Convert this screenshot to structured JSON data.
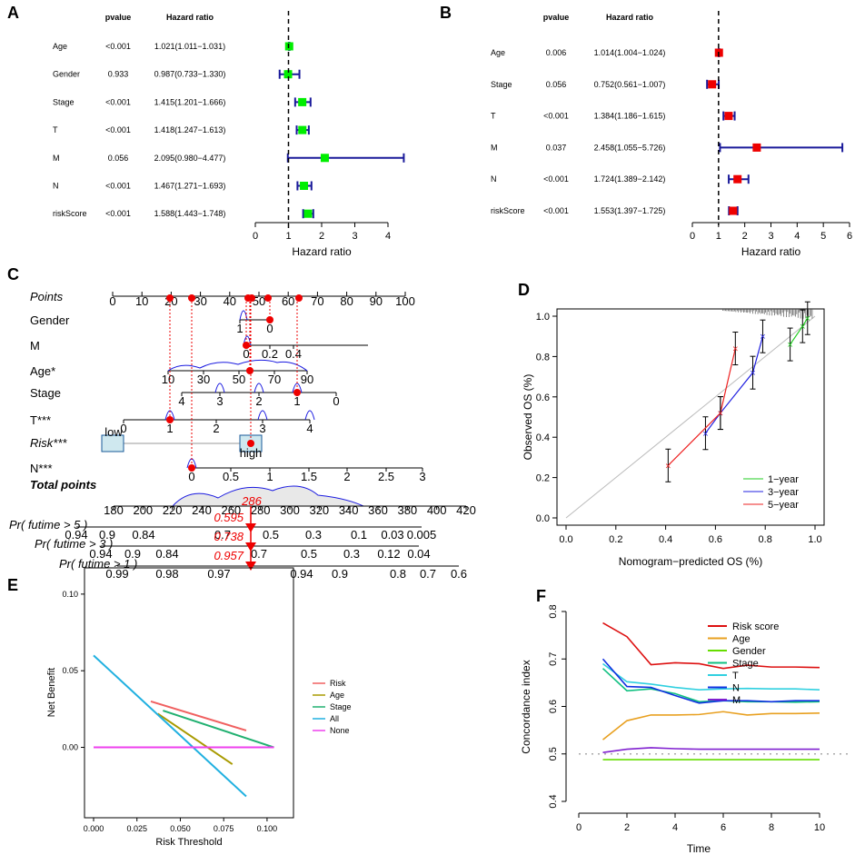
{
  "chart_data": [
    {
      "panel": "A",
      "type": "forest",
      "header_pvalue": "pvalue",
      "header_hr": "Hazard ratio",
      "xlabel": "Hazard ratio",
      "xlim": [
        0,
        4
      ],
      "ticks": [
        "0",
        "1",
        "2",
        "3",
        "4"
      ],
      "tick_values": [
        0,
        1,
        2,
        3,
        4
      ],
      "rows": [
        {
          "label": "Age",
          "p": "<0.001",
          "hr_text": "1.021(1.011−1.031)",
          "hr": 1.021,
          "lo": 1.011,
          "hi": 1.031
        },
        {
          "label": "Gender",
          "p": "0.933",
          "hr_text": "0.987(0.733−1.330)",
          "hr": 0.987,
          "lo": 0.733,
          "hi": 1.33
        },
        {
          "label": "Stage",
          "p": "<0.001",
          "hr_text": "1.415(1.201−1.666)",
          "hr": 1.415,
          "lo": 1.201,
          "hi": 1.666
        },
        {
          "label": "T",
          "p": "<0.001",
          "hr_text": "1.418(1.247−1.613)",
          "hr": 1.418,
          "lo": 1.247,
          "hi": 1.613
        },
        {
          "label": "M",
          "p": "0.056",
          "hr_text": "2.095(0.980−4.477)",
          "hr": 2.095,
          "lo": 0.98,
          "hi": 4.477
        },
        {
          "label": "N",
          "p": "<0.001",
          "hr_text": "1.467(1.271−1.693)",
          "hr": 1.467,
          "lo": 1.271,
          "hi": 1.693
        },
        {
          "label": "riskScore",
          "p": "<0.001",
          "hr_text": "1.588(1.443−1.748)",
          "hr": 1.588,
          "lo": 1.443,
          "hi": 1.748
        }
      ],
      "marker_color": "#00ee00"
    },
    {
      "panel": "B",
      "type": "forest",
      "header_pvalue": "pvalue",
      "header_hr": "Hazard ratio",
      "xlabel": "Hazard ratio",
      "xlim": [
        0,
        6
      ],
      "ticks": [
        "0",
        "1",
        "2",
        "3",
        "4",
        "5",
        "6"
      ],
      "tick_values": [
        0,
        1,
        2,
        3,
        4,
        5,
        6
      ],
      "rows": [
        {
          "label": "Age",
          "p": "0.006",
          "hr_text": "1.014(1.004−1.024)",
          "hr": 1.014,
          "lo": 1.004,
          "hi": 1.024
        },
        {
          "label": "Stage",
          "p": "0.056",
          "hr_text": "0.752(0.561−1.007)",
          "hr": 0.752,
          "lo": 0.561,
          "hi": 1.007
        },
        {
          "label": "T",
          "p": "<0.001",
          "hr_text": "1.384(1.186−1.615)",
          "hr": 1.384,
          "lo": 1.186,
          "hi": 1.615
        },
        {
          "label": "M",
          "p": "0.037",
          "hr_text": "2.458(1.055−5.726)",
          "hr": 2.458,
          "lo": 1.055,
          "hi": 5.726
        },
        {
          "label": "N",
          "p": "<0.001",
          "hr_text": "1.724(1.389−2.142)",
          "hr": 1.724,
          "lo": 1.389,
          "hi": 2.142
        },
        {
          "label": "riskScore",
          "p": "<0.001",
          "hr_text": "1.553(1.397−1.725)",
          "hr": 1.553,
          "lo": 1.397,
          "hi": 1.725
        }
      ],
      "marker_color": "#ee0000"
    },
    {
      "panel": "C",
      "type": "nomogram",
      "scales": [
        {
          "label": "Points",
          "ticks": [
            "0",
            "10",
            "20",
            "30",
            "40",
            "50",
            "60",
            "70",
            "80",
            "90",
            "100"
          ]
        },
        {
          "label": "Gender",
          "ticks": [
            "1",
            "0"
          ]
        },
        {
          "label": "M",
          "ticks": [
            "0",
            "0.2",
            "0.4"
          ]
        },
        {
          "label": "Age*",
          "ticks": [
            "10",
            "30",
            "50",
            "70",
            "90"
          ]
        },
        {
          "label": "Stage",
          "ticks": [
            "4",
            "3",
            "2",
            "1",
            "0"
          ]
        },
        {
          "label": "T***",
          "ticks": [
            "0",
            "1",
            "2",
            "3",
            "4"
          ]
        },
        {
          "label": "Risk***",
          "ticks": [
            "low",
            "high"
          ]
        },
        {
          "label": "N***",
          "ticks": [
            "0",
            "0.5",
            "1",
            "1.5",
            "2",
            "2.5",
            "3"
          ]
        },
        {
          "label": "Total points",
          "ticks": [
            "180",
            "200",
            "220",
            "240",
            "260",
            "280",
            "300",
            "320",
            "340",
            "360",
            "380",
            "400",
            "420"
          ]
        },
        {
          "label": "Pr( futime > 5 )",
          "ticks": [
            "0.94",
            "0.9",
            "0.84",
            "0.7",
            "0.5",
            "0.3",
            "0.1",
            "0.03",
            "0.005"
          ]
        },
        {
          "label": "Pr( futime > 3 )",
          "ticks": [
            "0.94",
            "0.9",
            "0.84",
            "0.7",
            "0.5",
            "0.3",
            "0.12",
            "0.04"
          ]
        },
        {
          "label": "Pr( futime > 1 )",
          "ticks": [
            "0.99",
            "0.98",
            "0.97",
            "0.94",
            "0.9",
            "0.8",
            "0.7",
            "0.6"
          ]
        }
      ],
      "total_value": "286",
      "prob_values": [
        "0.595",
        "0.738",
        "0.957"
      ],
      "highlight_color": "#ee0000"
    },
    {
      "panel": "D",
      "type": "calibration",
      "xlabel": "Nomogram−predicted OS (%)",
      "ylabel": "Observed OS (%)",
      "xlim": [
        0,
        1
      ],
      "ylim": [
        0,
        1
      ],
      "xticks": [
        "0.0",
        "0.2",
        "0.4",
        "0.6",
        "0.8",
        "1.0"
      ],
      "yticks": [
        "0.0",
        "0.2",
        "0.4",
        "0.6",
        "0.8",
        "1.0"
      ],
      "series": [
        {
          "name": "1-year",
          "color": "#22cc22",
          "x": [
            0.9,
            0.95,
            0.97
          ],
          "y": [
            0.86,
            0.95,
            0.99
          ]
        },
        {
          "name": "3-year",
          "color": "#2020e0",
          "x": [
            0.56,
            0.62,
            0.75,
            0.79
          ],
          "y": [
            0.42,
            0.52,
            0.72,
            0.9
          ]
        },
        {
          "name": "5-year",
          "color": "#ee2222",
          "x": [
            0.41,
            0.62,
            0.68
          ],
          "y": [
            0.26,
            0.52,
            0.84
          ]
        }
      ],
      "legend": [
        "1−year",
        "3−year",
        "5−year"
      ]
    },
    {
      "panel": "E",
      "type": "line",
      "xlabel": "Risk Threshold",
      "ylabel": "Net Benefit",
      "xlim": [
        0,
        0.11
      ],
      "ylim": [
        -0.04,
        0.11
      ],
      "xticks": [
        "0.000",
        "0.025",
        "0.050",
        "0.075",
        "0.100"
      ],
      "yticks": [
        "0.00",
        "0.05",
        "0.10"
      ],
      "series": [
        {
          "name": "Risk",
          "color": "#f06060",
          "x": [
            0.033,
            0.088
          ],
          "y": [
            0.03,
            0.011
          ]
        },
        {
          "name": "Age",
          "color": "#a89a00",
          "x": [
            0.037,
            0.08
          ],
          "y": [
            0.022,
            -0.011
          ]
        },
        {
          "name": "Stage",
          "color": "#20b070",
          "x": [
            0.04,
            0.104
          ],
          "y": [
            0.024,
            0.0
          ]
        },
        {
          "name": "All",
          "color": "#20b0e0",
          "x": [
            0.0,
            0.088
          ],
          "y": [
            0.06,
            -0.032
          ]
        },
        {
          "name": "None",
          "color": "#ee40ee",
          "x": [
            0.0,
            0.104
          ],
          "y": [
            0.0,
            0.0
          ]
        }
      ]
    },
    {
      "panel": "F",
      "type": "line",
      "xlabel": "Time",
      "ylabel": "Concordance index",
      "xlim": [
        0,
        10
      ],
      "ylim": [
        0.4,
        0.8
      ],
      "xticks": [
        "0",
        "2",
        "4",
        "6",
        "8",
        "10"
      ],
      "yticks": [
        "0.4",
        "0.5",
        "0.6",
        "0.7",
        "0.8"
      ],
      "x": [
        1,
        2,
        3,
        4,
        5,
        6,
        7,
        8,
        9,
        10
      ],
      "series": [
        {
          "name": "Risk score",
          "color": "#dd1010",
          "values": [
            0.776,
            0.747,
            0.688,
            0.692,
            0.69,
            0.68,
            0.687,
            0.683,
            0.683,
            0.682
          ]
        },
        {
          "name": "Age",
          "color": "#e8a020",
          "values": [
            0.53,
            0.57,
            0.582,
            0.582,
            0.583,
            0.589,
            0.582,
            0.585,
            0.585,
            0.586
          ]
        },
        {
          "name": "Gender",
          "color": "#66dd00",
          "values": [
            0.488,
            0.488,
            0.488,
            0.488,
            0.488,
            0.488,
            0.488,
            0.488,
            0.488,
            0.488
          ]
        },
        {
          "name": "Stage",
          "color": "#10c080",
          "values": [
            0.68,
            0.633,
            0.637,
            0.627,
            0.61,
            0.612,
            0.61,
            0.61,
            0.609,
            0.61
          ]
        },
        {
          "name": "T",
          "color": "#30d0e0",
          "values": [
            0.69,
            0.652,
            0.647,
            0.64,
            0.635,
            0.637,
            0.638,
            0.637,
            0.637,
            0.635
          ]
        },
        {
          "name": "N",
          "color": "#1030e0",
          "values": [
            0.7,
            0.642,
            0.64,
            0.623,
            0.607,
            0.612,
            0.612,
            0.61,
            0.612,
            0.612
          ]
        },
        {
          "name": "M",
          "color": "#8020d0",
          "values": [
            0.503,
            0.51,
            0.513,
            0.511,
            0.51,
            0.51,
            0.51,
            0.51,
            0.51,
            0.51
          ]
        }
      ],
      "reference_line": 0.5
    }
  ]
}
